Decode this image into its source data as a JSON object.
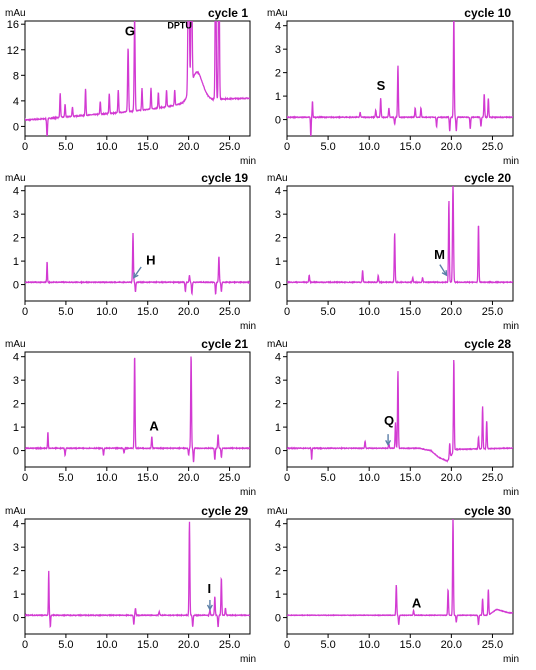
{
  "colors": {
    "trace": "#d23ad2",
    "axis": "#000000",
    "arrow": "#5b7fa8"
  },
  "chart_data": [
    {
      "type": "line",
      "title": "cycle 1",
      "ylabel": "mAu",
      "xlabel": "min",
      "xlim": [
        0,
        27.5
      ],
      "ylim": [
        -1.5,
        16.5
      ],
      "xticks": [
        "0",
        "5.0",
        "10.0",
        "15.0",
        "20.0",
        "25.0"
      ],
      "xtick_values": [
        0,
        5,
        10,
        15,
        20,
        25
      ],
      "yticks": [
        "0",
        "4",
        "8",
        "12",
        "16"
      ],
      "ytick_values": [
        0,
        4,
        8,
        12,
        16
      ],
      "baseline": {
        "points": [
          [
            0,
            1.0
          ],
          [
            2.5,
            1.2
          ],
          [
            5,
            1.5
          ],
          [
            8,
            1.8
          ],
          [
            11,
            2.1
          ],
          [
            14,
            2.5
          ],
          [
            17,
            3.0
          ],
          [
            19.5,
            3.6
          ],
          [
            21,
            4.0
          ],
          [
            24,
            4.3
          ],
          [
            27,
            4.4
          ]
        ],
        "noise": 0.15
      },
      "peaks": [
        {
          "x": 2.7,
          "h": -3.0,
          "w": 0.05
        },
        {
          "x": 4.3,
          "h": 3.8,
          "w": 0.05
        },
        {
          "x": 4.9,
          "h": 2.0,
          "w": 0.05
        },
        {
          "x": 5.8,
          "h": 1.5,
          "w": 0.05
        },
        {
          "x": 7.4,
          "h": 4.2,
          "w": 0.05
        },
        {
          "x": 9.2,
          "h": 2.0,
          "w": 0.05
        },
        {
          "x": 10.3,
          "h": 3.1,
          "w": 0.05
        },
        {
          "x": 11.4,
          "h": 3.6,
          "w": 0.05
        },
        {
          "x": 12.6,
          "h": 10.0,
          "w": 0.06
        },
        {
          "x": 13.4,
          "h": 14.5,
          "w": 0.06
        },
        {
          "x": 14.3,
          "h": 3.4,
          "w": 0.05
        },
        {
          "x": 15.4,
          "h": 3.3,
          "w": 0.05
        },
        {
          "x": 16.3,
          "h": 2.4,
          "w": 0.05
        },
        {
          "x": 17.3,
          "h": 2.6,
          "w": 0.05
        },
        {
          "x": 18.3,
          "h": 2.4,
          "w": 0.05
        },
        {
          "x": 20.0,
          "h": 25,
          "w": 0.08
        },
        {
          "x": 20.35,
          "h": 20,
          "w": 0.07
        },
        {
          "x": 21.0,
          "h": 4.5,
          "w": 0.7
        },
        {
          "x": 23.3,
          "h": 25,
          "w": 0.06
        },
        {
          "x": 23.7,
          "h": 25,
          "w": 0.06
        }
      ],
      "annotations": [
        {
          "text": "G",
          "x": 12.2,
          "y": 14.2,
          "bold": true,
          "size": 13
        },
        {
          "text": "DPTU",
          "x": 17.4,
          "y": 15.3,
          "bold": true,
          "size": 9
        }
      ]
    },
    {
      "type": "line",
      "title": "cycle 10",
      "ylabel": "mAu",
      "xlabel": "min",
      "xlim": [
        0,
        27.5
      ],
      "ylim": [
        -0.7,
        4.2
      ],
      "xticks": [
        "0",
        "5.0",
        "10.0",
        "15.0",
        "20.0",
        "25.0"
      ],
      "xtick_values": [
        0,
        5,
        10,
        15,
        20,
        25
      ],
      "yticks": [
        "0",
        "1",
        "2",
        "3",
        "4"
      ],
      "ytick_values": [
        0,
        1,
        2,
        3,
        4
      ],
      "baseline": {
        "points": [
          [
            0,
            0.1
          ],
          [
            27,
            0.1
          ]
        ],
        "noise": 0.03
      },
      "peaks": [
        {
          "x": 2.9,
          "h": -0.9,
          "w": 0.04
        },
        {
          "x": 3.1,
          "h": 0.7,
          "w": 0.04
        },
        {
          "x": 8.9,
          "h": 0.2,
          "w": 0.05
        },
        {
          "x": 10.8,
          "h": 0.3,
          "w": 0.05
        },
        {
          "x": 11.4,
          "h": 0.8,
          "w": 0.05
        },
        {
          "x": 12.4,
          "h": 0.4,
          "w": 0.05
        },
        {
          "x": 13.1,
          "h": -0.3,
          "w": 0.05
        },
        {
          "x": 13.5,
          "h": 2.2,
          "w": 0.05
        },
        {
          "x": 15.6,
          "h": 0.4,
          "w": 0.05
        },
        {
          "x": 16.3,
          "h": 0.4,
          "w": 0.05
        },
        {
          "x": 18.2,
          "h": -0.4,
          "w": 0.05
        },
        {
          "x": 19.8,
          "h": -0.6,
          "w": 0.05
        },
        {
          "x": 20.3,
          "h": 4.4,
          "w": 0.05
        },
        {
          "x": 20.6,
          "h": -0.6,
          "w": 0.05
        },
        {
          "x": 22.3,
          "h": -0.5,
          "w": 0.05
        },
        {
          "x": 23.6,
          "h": -0.4,
          "w": 0.05
        },
        {
          "x": 24.0,
          "h": 1.0,
          "w": 0.05
        },
        {
          "x": 24.5,
          "h": 0.8,
          "w": 0.05
        }
      ],
      "annotations": [
        {
          "text": "S",
          "x": 10.9,
          "y": 1.25,
          "bold": true,
          "size": 13
        }
      ]
    },
    {
      "type": "line",
      "title": "cycle 19",
      "ylabel": "mAu",
      "xlabel": "min",
      "xlim": [
        0,
        27.5
      ],
      "ylim": [
        -0.7,
        4.2
      ],
      "xticks": [
        "0",
        "5.0",
        "10.0",
        "15.0",
        "20.0",
        "25.0"
      ],
      "xtick_values": [
        0,
        5,
        10,
        15,
        20,
        25
      ],
      "yticks": [
        "0",
        "1",
        "2",
        "3",
        "4"
      ],
      "ytick_values": [
        0,
        1,
        2,
        3,
        4
      ],
      "baseline": {
        "points": [
          [
            0,
            0.1
          ],
          [
            27,
            0.1
          ]
        ],
        "noise": 0.03
      },
      "peaks": [
        {
          "x": 2.7,
          "h": 0.9,
          "w": 0.04
        },
        {
          "x": 13.2,
          "h": 2.1,
          "w": 0.05
        },
        {
          "x": 13.5,
          "h": -0.4,
          "w": 0.05
        },
        {
          "x": 19.6,
          "h": -0.4,
          "w": 0.05
        },
        {
          "x": 20.1,
          "h": 0.3,
          "w": 0.05
        },
        {
          "x": 20.4,
          "h": -0.5,
          "w": 0.05
        },
        {
          "x": 23.3,
          "h": -0.5,
          "w": 0.05
        },
        {
          "x": 23.7,
          "h": 1.1,
          "w": 0.05
        },
        {
          "x": 24.0,
          "h": -0.4,
          "w": 0.05
        }
      ],
      "annotations": [
        {
          "text": "H",
          "x": 14.8,
          "y": 0.85,
          "bold": true,
          "size": 13
        }
      ],
      "arrows": [
        {
          "x1": 14.2,
          "y1": 0.75,
          "x2": 13.3,
          "y2": 0.3
        }
      ]
    },
    {
      "type": "line",
      "title": "cycle 20",
      "ylabel": "mAu",
      "xlabel": "min",
      "xlim": [
        0,
        27.5
      ],
      "ylim": [
        -0.7,
        4.2
      ],
      "xticks": [
        "0",
        "5.0",
        "10.0",
        "15.0",
        "20.0",
        "25.0"
      ],
      "xtick_values": [
        0,
        5,
        10,
        15,
        20,
        25
      ],
      "yticks": [
        "0",
        "1",
        "2",
        "3",
        "4"
      ],
      "ytick_values": [
        0,
        1,
        2,
        3,
        4
      ],
      "baseline": {
        "points": [
          [
            0,
            0.1
          ],
          [
            27,
            0.1
          ]
        ],
        "noise": 0.03
      },
      "peaks": [
        {
          "x": 2.7,
          "h": 0.3,
          "w": 0.05
        },
        {
          "x": 9.2,
          "h": 0.5,
          "w": 0.05
        },
        {
          "x": 11.1,
          "h": 0.3,
          "w": 0.05
        },
        {
          "x": 13.1,
          "h": 2.1,
          "w": 0.05
        },
        {
          "x": 15.3,
          "h": 0.2,
          "w": 0.05
        },
        {
          "x": 16.5,
          "h": 0.2,
          "w": 0.05
        },
        {
          "x": 19.7,
          "h": 3.5,
          "w": 0.05
        },
        {
          "x": 20.2,
          "h": 4.2,
          "w": 0.06
        },
        {
          "x": 23.3,
          "h": 2.5,
          "w": 0.05
        }
      ],
      "annotations": [
        {
          "text": "M",
          "x": 17.9,
          "y": 1.1,
          "bold": true,
          "size": 13
        }
      ],
      "arrows": [
        {
          "x1": 18.6,
          "y1": 0.85,
          "x2": 19.4,
          "y2": 0.4
        }
      ]
    },
    {
      "type": "line",
      "title": "cycle 21",
      "ylabel": "mAu",
      "xlabel": "min",
      "xlim": [
        0,
        27.5
      ],
      "ylim": [
        -0.7,
        4.2
      ],
      "xticks": [
        "0",
        "5.0",
        "10.0",
        "15.0",
        "20.0",
        "25.0"
      ],
      "xtick_values": [
        0,
        5,
        10,
        15,
        20,
        25
      ],
      "yticks": [
        "0",
        "1",
        "2",
        "3",
        "4"
      ],
      "ytick_values": [
        0,
        1,
        2,
        3,
        4
      ],
      "baseline": {
        "points": [
          [
            0,
            0.1
          ],
          [
            27,
            0.1
          ]
        ],
        "noise": 0.03
      },
      "peaks": [
        {
          "x": 2.8,
          "h": 0.7,
          "w": 0.04
        },
        {
          "x": 4.9,
          "h": -0.3,
          "w": 0.05
        },
        {
          "x": 9.6,
          "h": -0.3,
          "w": 0.05
        },
        {
          "x": 12.1,
          "h": -0.2,
          "w": 0.05
        },
        {
          "x": 13.4,
          "h": 4.0,
          "w": 0.05
        },
        {
          "x": 15.5,
          "h": 0.5,
          "w": 0.05
        },
        {
          "x": 20.0,
          "h": -0.3,
          "w": 0.05
        },
        {
          "x": 20.3,
          "h": 4.0,
          "w": 0.05
        },
        {
          "x": 20.6,
          "h": -0.6,
          "w": 0.05
        },
        {
          "x": 23.2,
          "h": -0.5,
          "w": 0.05
        },
        {
          "x": 23.6,
          "h": 0.6,
          "w": 0.05
        },
        {
          "x": 24.0,
          "h": -0.4,
          "w": 0.05
        }
      ],
      "annotations": [
        {
          "text": "A",
          "x": 15.2,
          "y": 0.85,
          "bold": true,
          "size": 13
        }
      ]
    },
    {
      "type": "line",
      "title": "cycle 28",
      "ylabel": "mAu",
      "xlabel": "min",
      "xlim": [
        0,
        27.5
      ],
      "ylim": [
        -0.7,
        4.2
      ],
      "xticks": [
        "0",
        "5.0",
        "10.0",
        "15.0",
        "20.0",
        "25.0"
      ],
      "xtick_values": [
        0,
        5,
        10,
        15,
        20,
        25
      ],
      "yticks": [
        "0",
        "1",
        "2",
        "3",
        "4"
      ],
      "ytick_values": [
        0,
        1,
        2,
        3,
        4
      ],
      "baseline": {
        "points": [
          [
            0,
            0.1
          ],
          [
            16,
            0.1
          ],
          [
            17.5,
            0.0
          ],
          [
            18.5,
            -0.3
          ],
          [
            19.5,
            -0.45
          ],
          [
            20.5,
            0.05
          ],
          [
            27,
            0.1
          ]
        ],
        "noise": 0.03
      },
      "peaks": [
        {
          "x": 3.0,
          "h": -0.5,
          "w": 0.04
        },
        {
          "x": 9.5,
          "h": 0.3,
          "w": 0.05
        },
        {
          "x": 12.4,
          "h": 0.2,
          "w": 0.05
        },
        {
          "x": 13.2,
          "h": 1.1,
          "w": 0.05
        },
        {
          "x": 13.5,
          "h": 3.3,
          "w": 0.05
        },
        {
          "x": 19.8,
          "h": 0.6,
          "w": 0.05
        },
        {
          "x": 20.3,
          "h": 4.0,
          "w": 0.05
        },
        {
          "x": 23.3,
          "h": 0.5,
          "w": 0.05
        },
        {
          "x": 23.8,
          "h": 1.8,
          "w": 0.05
        },
        {
          "x": 24.3,
          "h": 1.2,
          "w": 0.05
        }
      ],
      "annotations": [
        {
          "text": "Q",
          "x": 11.8,
          "y": 1.1,
          "bold": true,
          "size": 13
        }
      ],
      "arrows": [
        {
          "x1": 12.3,
          "y1": 0.7,
          "x2": 12.3,
          "y2": 0.25
        }
      ]
    },
    {
      "type": "line",
      "title": "cycle 29",
      "ylabel": "mAu",
      "xlabel": "min",
      "xlim": [
        0,
        27.5
      ],
      "ylim": [
        -0.7,
        4.2
      ],
      "xticks": [
        "0",
        "5.0",
        "10.0",
        "15.0",
        "20.0",
        "25.0"
      ],
      "xtick_values": [
        0,
        5,
        10,
        15,
        20,
        25
      ],
      "yticks": [
        "0",
        "1",
        "2",
        "3",
        "4"
      ],
      "ytick_values": [
        0,
        1,
        2,
        3,
        4
      ],
      "baseline": {
        "points": [
          [
            0,
            0.1
          ],
          [
            27,
            0.1
          ]
        ],
        "noise": 0.03
      },
      "peaks": [
        {
          "x": 2.9,
          "h": 1.9,
          "w": 0.04
        },
        {
          "x": 3.1,
          "h": -0.5,
          "w": 0.04
        },
        {
          "x": 13.3,
          "h": -0.4,
          "w": 0.05
        },
        {
          "x": 13.5,
          "h": 0.3,
          "w": 0.05
        },
        {
          "x": 16.4,
          "h": 0.15,
          "w": 0.05
        },
        {
          "x": 20.1,
          "h": 4.0,
          "w": 0.05
        },
        {
          "x": 20.5,
          "h": -0.5,
          "w": 0.05
        },
        {
          "x": 22.6,
          "h": 0.25,
          "w": 0.05
        },
        {
          "x": 23.2,
          "h": 0.8,
          "w": 0.05
        },
        {
          "x": 23.6,
          "h": -0.5,
          "w": 0.05
        },
        {
          "x": 24.0,
          "h": 1.6,
          "w": 0.05
        },
        {
          "x": 24.5,
          "h": 0.3,
          "w": 0.05
        }
      ],
      "annotations": [
        {
          "text": "I",
          "x": 22.3,
          "y": 1.05,
          "bold": true,
          "size": 13
        }
      ],
      "arrows": [
        {
          "x1": 22.6,
          "y1": 0.75,
          "x2": 22.6,
          "y2": 0.35
        }
      ]
    },
    {
      "type": "line",
      "title": "cycle 30",
      "ylabel": "mAu",
      "xlabel": "min",
      "xlim": [
        0,
        27.5
      ],
      "ylim": [
        -0.7,
        4.2
      ],
      "xticks": [
        "0",
        "5.0",
        "10.0",
        "15.0",
        "20.0",
        "25.0"
      ],
      "xtick_values": [
        0,
        5,
        10,
        15,
        20,
        25
      ],
      "yticks": [
        "0",
        "1",
        "2",
        "3",
        "4"
      ],
      "ytick_values": [
        0,
        1,
        2,
        3,
        4
      ],
      "baseline": {
        "points": [
          [
            0,
            0.1
          ],
          [
            24.5,
            0.1
          ],
          [
            25.5,
            0.35
          ],
          [
            26.5,
            0.25
          ],
          [
            27,
            0.2
          ]
        ],
        "noise": 0.02
      },
      "peaks": [
        {
          "x": 13.3,
          "h": 1.3,
          "w": 0.05
        },
        {
          "x": 13.6,
          "h": -0.4,
          "w": 0.05
        },
        {
          "x": 15.4,
          "h": 0.2,
          "w": 0.05
        },
        {
          "x": 19.6,
          "h": 1.1,
          "w": 0.05
        },
        {
          "x": 20.2,
          "h": 4.2,
          "w": 0.05
        },
        {
          "x": 20.6,
          "h": -0.3,
          "w": 0.05
        },
        {
          "x": 23.3,
          "h": -0.4,
          "w": 0.05
        },
        {
          "x": 23.8,
          "h": 0.7,
          "w": 0.05
        },
        {
          "x": 24.5,
          "h": 1.1,
          "w": 0.05
        }
      ],
      "annotations": [
        {
          "text": "A",
          "x": 15.2,
          "y": 0.42,
          "bold": true,
          "size": 13
        }
      ]
    }
  ]
}
